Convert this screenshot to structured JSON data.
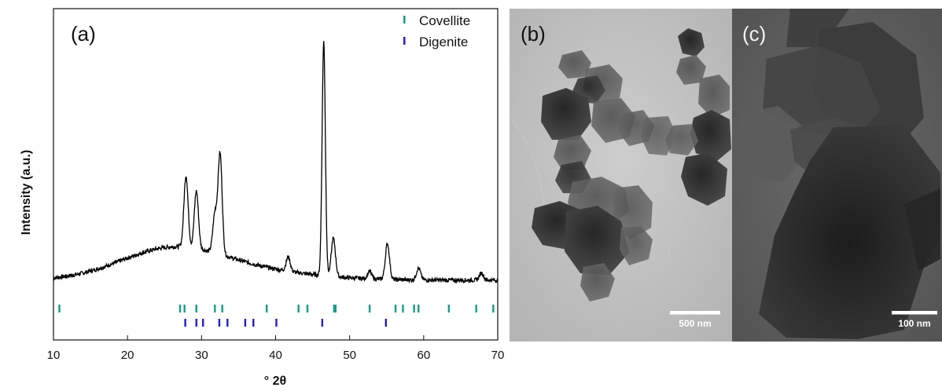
{
  "figure": {
    "panel_a": {
      "label": "(a)",
      "chart_data": {
        "type": "line",
        "xlabel": "° 2θ",
        "ylabel": "Intensity (a.u.)",
        "xlim": [
          10,
          70
        ],
        "x_ticks": [
          10,
          20,
          30,
          40,
          50,
          60,
          70
        ],
        "grid": false,
        "legend_position": "top-right",
        "series": [
          {
            "name": "Covellite",
            "color": "#1a9a8a",
            "reference_positions": [
              10.8,
              27.1,
              27.7,
              29.3,
              31.8,
              32.8,
              38.8,
              43.1,
              44.3,
              47.9,
              48.1,
              52.7,
              56.2,
              57.2,
              58.7,
              59.3,
              63.4,
              67.1,
              69.4
            ]
          },
          {
            "name": "Digenite",
            "color": "#1f1fcc",
            "reference_positions": [
              27.8,
              29.3,
              30.2,
              32.4,
              33.5,
              35.9,
              37.0,
              40.1,
              46.3,
              54.9
            ]
          }
        ],
        "pattern": {
          "name": "",
          "color": "#000000",
          "baseline": 0.05,
          "broad_hump": {
            "center": 26,
            "width": 7,
            "height": 0.13
          },
          "peaks": [
            {
              "x": 27.9,
              "h": 0.3
            },
            {
              "x": 29.3,
              "h": 0.24
            },
            {
              "x": 31.8,
              "h": 0.16
            },
            {
              "x": 32.5,
              "h": 0.42
            },
            {
              "x": 41.7,
              "h": 0.06
            },
            {
              "x": 46.5,
              "h": 0.98
            },
            {
              "x": 47.8,
              "h": 0.16
            },
            {
              "x": 52.7,
              "h": 0.03
            },
            {
              "x": 55.1,
              "h": 0.15
            },
            {
              "x": 59.3,
              "h": 0.05
            },
            {
              "x": 67.8,
              "h": 0.03
            }
          ]
        }
      }
    },
    "panel_b": {
      "label": "(b)",
      "scale_bar": "500 nm"
    },
    "panel_c": {
      "label": "(c)",
      "scale_bar": "100 nm"
    }
  }
}
